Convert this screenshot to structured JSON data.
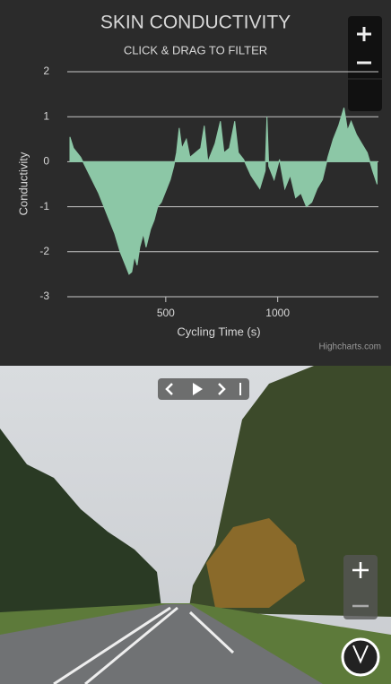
{
  "chart_data": {
    "type": "area",
    "title": "SKIN CONDUCTIVITY",
    "subtitle": "CLICK & DRAG TO FILTER",
    "x_label": "Cycling Time (s)",
    "y_label": "Conductivity",
    "credit": "Highcharts.com",
    "xlim": [
      60,
      1450
    ],
    "xticks": [
      500,
      1000
    ],
    "ylim": [
      -3,
      2
    ],
    "yticks": [
      -3,
      -2,
      -1,
      0,
      1,
      2
    ],
    "grid": true,
    "x": [
      72,
      88,
      120,
      160,
      200,
      240,
      272,
      296,
      320,
      336,
      348,
      360,
      372,
      384,
      400,
      412,
      432,
      448,
      464,
      480,
      504,
      520,
      536,
      548,
      560,
      572,
      592,
      608,
      632,
      656,
      672,
      688,
      720,
      744,
      760,
      784,
      808,
      824,
      848,
      880,
      920,
      944,
      952,
      960,
      984,
      1008,
      1032,
      1056,
      1080,
      1104,
      1128,
      1152,
      1176,
      1200,
      1224,
      1248,
      1272,
      1296,
      1312,
      1328,
      1352,
      1376,
      1400,
      1424,
      1444
    ],
    "series": [
      {
        "color": "#8cc7a6",
        "values": [
          0.55,
          0.3,
          0.1,
          -0.3,
          -0.7,
          -1.2,
          -1.6,
          -2.0,
          -2.3,
          -2.5,
          -2.45,
          -2.1,
          -2.3,
          -1.9,
          -1.6,
          -1.9,
          -1.5,
          -1.3,
          -1.0,
          -0.9,
          -0.6,
          -0.4,
          -0.1,
          0.2,
          0.75,
          0.3,
          0.5,
          0.1,
          0.2,
          0.3,
          0.8,
          0.0,
          0.4,
          0.9,
          0.2,
          0.3,
          0.9,
          0.2,
          0.05,
          -0.3,
          -0.6,
          -0.2,
          1.0,
          -0.1,
          -0.4,
          0.05,
          -0.6,
          -0.3,
          -0.8,
          -0.7,
          -1.0,
          -0.9,
          -0.6,
          -0.4,
          0.1,
          0.5,
          0.8,
          1.2,
          0.7,
          0.9,
          0.6,
          0.4,
          0.2,
          -0.2,
          -0.5
        ]
      }
    ]
  }
}
